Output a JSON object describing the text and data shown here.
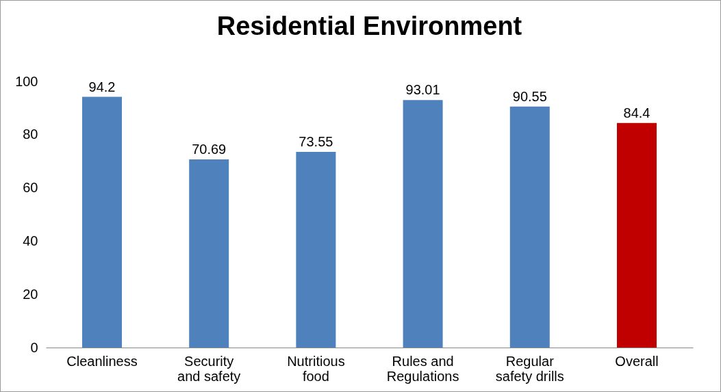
{
  "chart_data": {
    "type": "bar",
    "title": "Residential Environment",
    "categories": [
      "Cleanliness",
      "Security and safety",
      "Nutritious food",
      "Rules and Regulations",
      "Regular safety drills",
      "Overall"
    ],
    "values": [
      94.2,
      70.69,
      73.55,
      93.01,
      90.55,
      84.4
    ],
    "colors": [
      "#4f81bd",
      "#4f81bd",
      "#4f81bd",
      "#4f81bd",
      "#4f81bd",
      "#c00000"
    ],
    "ylim": [
      0,
      100
    ],
    "yticks": [
      0,
      20,
      40,
      60,
      80,
      100
    ],
    "grid": false,
    "data_labels": true
  }
}
